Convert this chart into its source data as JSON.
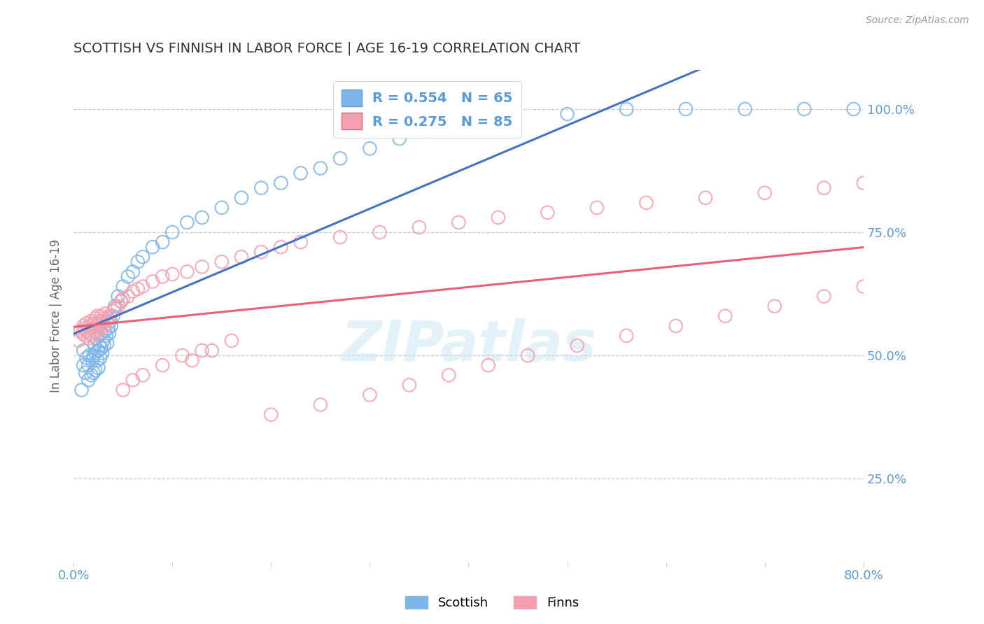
{
  "title": "SCOTTISH VS FINNISH IN LABOR FORCE | AGE 16-19 CORRELATION CHART",
  "source": "Source: ZipAtlas.com",
  "ylabel": "In Labor Force | Age 16-19",
  "xlim": [
    0.0,
    0.8
  ],
  "ylim": [
    0.08,
    1.08
  ],
  "xticks": [
    0.0,
    0.1,
    0.2,
    0.3,
    0.4,
    0.5,
    0.6,
    0.7,
    0.8
  ],
  "yticks": [
    0.25,
    0.5,
    0.75,
    1.0
  ],
  "yticklabels": [
    "25.0%",
    "50.0%",
    "75.0%",
    "100.0%"
  ],
  "scottish_color": "#7EB6E8",
  "finnish_color": "#F4A0B0",
  "scottish_line_color": "#4472C4",
  "finnish_line_color": "#E8607A",
  "grid_color": "#CCCCCC",
  "background_color": "#FFFFFF",
  "legend_r1": "R = 0.554",
  "legend_n1": "N = 65",
  "legend_r2": "R = 0.275",
  "legend_n2": "N = 85",
  "label_scottish": "Scottish",
  "label_finns": "Finns",
  "title_color": "#333333",
  "axis_label_color": "#666666",
  "tick_label_color": "#5B9BD5",
  "scottish_x": [
    0.008,
    0.01,
    0.01,
    0.012,
    0.013,
    0.015,
    0.015,
    0.016,
    0.018,
    0.019,
    0.02,
    0.02,
    0.021,
    0.022,
    0.022,
    0.023,
    0.024,
    0.025,
    0.025,
    0.026,
    0.027,
    0.028,
    0.028,
    0.029,
    0.03,
    0.031,
    0.032,
    0.033,
    0.034,
    0.035,
    0.036,
    0.037,
    0.038,
    0.04,
    0.042,
    0.045,
    0.048,
    0.05,
    0.055,
    0.06,
    0.065,
    0.07,
    0.08,
    0.09,
    0.1,
    0.115,
    0.13,
    0.15,
    0.17,
    0.19,
    0.21,
    0.23,
    0.25,
    0.27,
    0.3,
    0.33,
    0.36,
    0.4,
    0.44,
    0.5,
    0.56,
    0.62,
    0.68,
    0.74,
    0.79
  ],
  "scottish_y": [
    0.43,
    0.48,
    0.51,
    0.465,
    0.495,
    0.45,
    0.48,
    0.5,
    0.46,
    0.49,
    0.465,
    0.5,
    0.52,
    0.47,
    0.505,
    0.535,
    0.49,
    0.475,
    0.51,
    0.52,
    0.495,
    0.515,
    0.545,
    0.505,
    0.53,
    0.52,
    0.55,
    0.54,
    0.525,
    0.555,
    0.545,
    0.57,
    0.56,
    0.58,
    0.6,
    0.62,
    0.61,
    0.64,
    0.66,
    0.67,
    0.69,
    0.7,
    0.72,
    0.73,
    0.75,
    0.77,
    0.78,
    0.8,
    0.82,
    0.84,
    0.85,
    0.87,
    0.88,
    0.9,
    0.92,
    0.94,
    0.955,
    0.97,
    0.98,
    0.99,
    1.0,
    1.0,
    1.0,
    1.0,
    1.0
  ],
  "finnish_x": [
    0.005,
    0.007,
    0.009,
    0.01,
    0.011,
    0.012,
    0.013,
    0.014,
    0.015,
    0.016,
    0.017,
    0.018,
    0.018,
    0.019,
    0.02,
    0.021,
    0.022,
    0.023,
    0.024,
    0.025,
    0.025,
    0.026,
    0.027,
    0.028,
    0.029,
    0.03,
    0.031,
    0.032,
    0.033,
    0.035,
    0.037,
    0.04,
    0.042,
    0.045,
    0.048,
    0.05,
    0.055,
    0.06,
    0.065,
    0.07,
    0.08,
    0.09,
    0.1,
    0.115,
    0.13,
    0.15,
    0.17,
    0.19,
    0.21,
    0.23,
    0.12,
    0.14,
    0.16,
    0.27,
    0.31,
    0.35,
    0.39,
    0.43,
    0.48,
    0.53,
    0.58,
    0.64,
    0.7,
    0.76,
    0.8,
    0.05,
    0.06,
    0.07,
    0.09,
    0.11,
    0.13,
    0.2,
    0.25,
    0.3,
    0.34,
    0.38,
    0.42,
    0.46,
    0.51,
    0.56,
    0.61,
    0.66,
    0.71,
    0.76,
    0.8
  ],
  "finnish_y": [
    0.53,
    0.55,
    0.545,
    0.56,
    0.555,
    0.54,
    0.565,
    0.55,
    0.535,
    0.56,
    0.545,
    0.57,
    0.555,
    0.54,
    0.565,
    0.55,
    0.575,
    0.56,
    0.58,
    0.565,
    0.545,
    0.57,
    0.555,
    0.58,
    0.565,
    0.575,
    0.56,
    0.585,
    0.57,
    0.575,
    0.58,
    0.59,
    0.595,
    0.6,
    0.61,
    0.615,
    0.62,
    0.63,
    0.635,
    0.64,
    0.65,
    0.66,
    0.665,
    0.67,
    0.68,
    0.69,
    0.7,
    0.71,
    0.72,
    0.73,
    0.49,
    0.51,
    0.53,
    0.74,
    0.75,
    0.76,
    0.77,
    0.78,
    0.79,
    0.8,
    0.81,
    0.82,
    0.83,
    0.84,
    0.85,
    0.43,
    0.45,
    0.46,
    0.48,
    0.5,
    0.51,
    0.38,
    0.4,
    0.42,
    0.44,
    0.46,
    0.48,
    0.5,
    0.52,
    0.54,
    0.56,
    0.58,
    0.6,
    0.62,
    0.64
  ]
}
